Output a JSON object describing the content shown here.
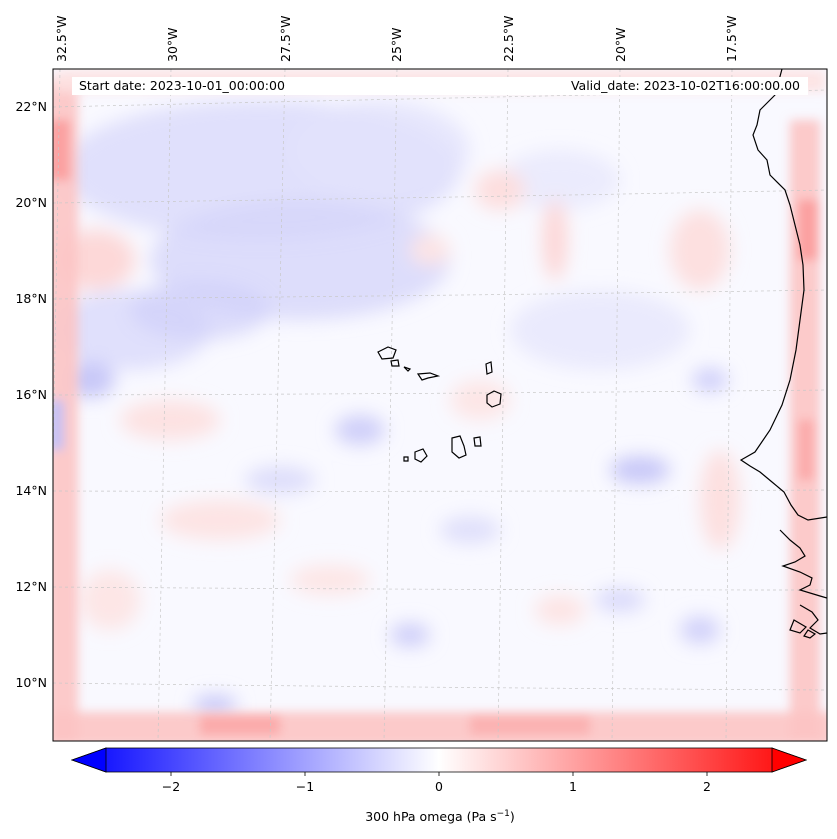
{
  "header": {
    "start_date": "Start date: 2023-10-01_00:00:00",
    "valid_date": "Valid_date: 2023-10-02T16:00:00.00"
  },
  "longitude_labels": [
    "32.5°W",
    "30°W",
    "27.5°W",
    "25°W",
    "22.5°W",
    "20°W",
    "17.5°W"
  ],
  "latitude_labels": [
    "22°N",
    "20°N",
    "18°N",
    "16°N",
    "14°N",
    "12°N",
    "10°N"
  ],
  "colorbar": {
    "ticks": [
      "−2",
      "−1",
      "0",
      "1",
      "2"
    ],
    "label": "300 hPa omega (Pa s",
    "label_exponent": "−1",
    "label_suffix": ")",
    "range": [
      -2.75,
      2.75
    ],
    "colors": {
      "negative": "#0000ff",
      "zero": "#ffffff",
      "positive": "#ff0000"
    }
  },
  "map": {
    "variable": "300 hPa omega",
    "units": "Pa s-1",
    "lon_range": [
      -33,
      -15.5
    ],
    "lat_range": [
      8.8,
      22.8
    ],
    "gridlines": true,
    "gridline_color": "#c8c8c8"
  }
}
